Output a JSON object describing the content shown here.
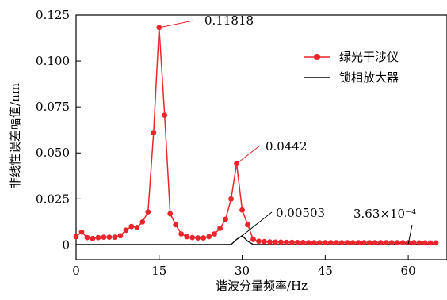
{
  "chart_data": {
    "type": "line",
    "xlabel": "谐波分量频率/Hz",
    "ylabel": "非线性误差幅值/nm",
    "xlim": [
      0,
      67
    ],
    "ylim": [
      -0.008,
      0.125
    ],
    "x_ticks": [
      0,
      15,
      30,
      45,
      60
    ],
    "x_tick_labels": [
      "0",
      "15",
      "30",
      "45",
      "60"
    ],
    "y_ticks": [
      0,
      0.025,
      0.05,
      0.075,
      0.1,
      0.125
    ],
    "y_tick_labels": [
      "0",
      "0.025",
      "0.050",
      "0.075",
      "0.100",
      "0.125"
    ],
    "grid": false,
    "legend_position": "top-right",
    "series": [
      {
        "name": "绿光干涉仪",
        "color": "#e8262b",
        "marker": "circle",
        "x": [
          0,
          1,
          2,
          3,
          4,
          5,
          6,
          7,
          8,
          9,
          10,
          11,
          12,
          13,
          14,
          15,
          16,
          17,
          18,
          19,
          20,
          21,
          22,
          23,
          24,
          25,
          26,
          27,
          28,
          29,
          30,
          31,
          32,
          33,
          34,
          35,
          36,
          37,
          38,
          39,
          40,
          41,
          42,
          43,
          44,
          45,
          46,
          47,
          48,
          49,
          50,
          51,
          52,
          53,
          54,
          55,
          56,
          57,
          58,
          59,
          60,
          61,
          62,
          63,
          64,
          65
        ],
        "values": [
          0.0045,
          0.007,
          0.004,
          0.0035,
          0.004,
          0.0042,
          0.0042,
          0.0042,
          0.005,
          0.008,
          0.01,
          0.0095,
          0.0125,
          0.018,
          0.061,
          0.11818,
          0.0705,
          0.017,
          0.011,
          0.006,
          0.0045,
          0.004,
          0.0038,
          0.0038,
          0.0045,
          0.006,
          0.009,
          0.014,
          0.025,
          0.0442,
          0.019,
          0.011,
          0.003,
          0.002,
          0.0018,
          0.0016,
          0.0015,
          0.0015,
          0.0014,
          0.0014,
          0.0013,
          0.0013,
          0.0012,
          0.0012,
          0.0012,
          0.0012,
          0.0012,
          0.0012,
          0.0012,
          0.0012,
          0.0012,
          0.0012,
          0.0012,
          0.0012,
          0.0012,
          0.0012,
          0.0012,
          0.0012,
          0.0012,
          0.0012,
          0.0012,
          0.0012,
          0.0011,
          0.0011,
          0.0011,
          0.0011
        ]
      },
      {
        "name": "锁相放大器",
        "color": "#000000",
        "marker": "none",
        "x": [
          0,
          2,
          4,
          6,
          8,
          10,
          12,
          14,
          16,
          18,
          20,
          22,
          24,
          26,
          28,
          29,
          30,
          31,
          32,
          34,
          36,
          38,
          40,
          42,
          44,
          46,
          48,
          50,
          52,
          54,
          56,
          58,
          59,
          60,
          61,
          62,
          64,
          65
        ],
        "values": [
          0.0002,
          0.0002,
          0.0002,
          0.0002,
          0.0002,
          0.0002,
          0.0002,
          0.0002,
          0.0002,
          0.0002,
          0.0002,
          0.0002,
          0.0002,
          0.0002,
          0.0002,
          0.003,
          0.00503,
          0.002,
          0.0002,
          0.0002,
          0.0002,
          0.0002,
          0.0002,
          0.0002,
          0.0002,
          0.0002,
          0.0002,
          0.0002,
          0.0002,
          0.0002,
          0.0002,
          0.0005,
          0.001,
          0.00036,
          0.0004,
          0.0003,
          0.0002,
          0.0002
        ]
      }
    ],
    "annotations": [
      {
        "text": "0.11818",
        "x": 15,
        "y": 0.11818
      },
      {
        "text": "0.0442",
        "x": 29,
        "y": 0.0442
      },
      {
        "text": "0.00503",
        "x": 30,
        "y": 0.00503
      },
      {
        "text": "3.63×10⁻⁴",
        "x": 60,
        "y": 0.00036
      }
    ]
  }
}
